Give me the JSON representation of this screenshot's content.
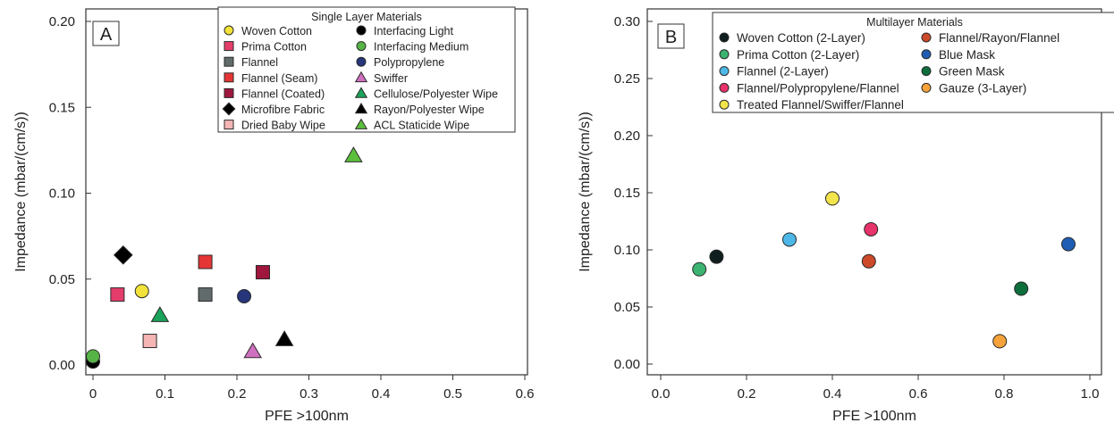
{
  "chart_data": [
    {
      "type": "scatter",
      "panel_label": "A",
      "xlabel": "PFE >100nm",
      "ylabel": "Impedance (mbar/(cm/s))",
      "xlim": [
        0,
        0.6
      ],
      "ylim": [
        0,
        0.2
      ],
      "xticks": [
        "0",
        "0.1",
        "0.2",
        "0.3",
        "0.4",
        "0.5",
        "0.6"
      ],
      "xtick_values": [
        0,
        0.1,
        0.2,
        0.3,
        0.4,
        0.5,
        0.6
      ],
      "yticks": [
        "0.00",
        "0.05",
        "0.10",
        "0.15",
        "0.20"
      ],
      "ytick_values": [
        0,
        0.05,
        0.1,
        0.15,
        0.2
      ],
      "legend_title": "Single Layer Materials",
      "legend_placement": "top-right",
      "series": [
        {
          "name": "Woven Cotton",
          "marker": "circle",
          "color": "#f2e23a",
          "x": 0.068,
          "y": 0.043
        },
        {
          "name": "Prima Cotton",
          "marker": "square",
          "color": "#e43d6b",
          "x": 0.034,
          "y": 0.041
        },
        {
          "name": "Flannel",
          "marker": "square",
          "color": "#616b6b",
          "x": 0.156,
          "y": 0.041
        },
        {
          "name": "Flannel (Seam)",
          "marker": "square",
          "color": "#e63535",
          "x": 0.156,
          "y": 0.06
        },
        {
          "name": "Flannel (Coated)",
          "marker": "square",
          "color": "#a0173e",
          "x": 0.236,
          "y": 0.054
        },
        {
          "name": "Microfibre Fabric",
          "marker": "diamond",
          "color": "#000000",
          "x": 0.042,
          "y": 0.064
        },
        {
          "name": "Dried Baby Wipe",
          "marker": "square",
          "color": "#f5b5b5",
          "x": 0.079,
          "y": 0.014
        },
        {
          "name": "Interfacing Light",
          "marker": "circle",
          "color": "#000000",
          "x": 0.0,
          "y": 0.002
        },
        {
          "name": "Interfacing Medium",
          "marker": "circle",
          "color": "#56b446",
          "x": 0.0,
          "y": 0.005
        },
        {
          "name": "Polypropylene",
          "marker": "circle",
          "color": "#27357a",
          "x": 0.21,
          "y": 0.04
        },
        {
          "name": "Swiffer",
          "marker": "triangle",
          "color": "#d070c0",
          "x": 0.222,
          "y": 0.008
        },
        {
          "name": "Cellulose/Polyester Wipe",
          "marker": "triangle",
          "color": "#1aa35a",
          "x": 0.093,
          "y": 0.029
        },
        {
          "name": "Rayon/Polyester Wipe",
          "marker": "triangle",
          "color": "#000000",
          "x": 0.266,
          "y": 0.015
        },
        {
          "name": "ACL Staticide Wipe",
          "marker": "triangle",
          "color": "#5cbf3c",
          "x": 0.362,
          "y": 0.122
        }
      ]
    },
    {
      "type": "scatter",
      "panel_label": "B",
      "xlabel": "PFE >100nm",
      "ylabel": "Impedance (mbar/(cm/s))",
      "xlim": [
        0,
        1.0
      ],
      "ylim": [
        0,
        0.3
      ],
      "xticks": [
        "0.0",
        "0.2",
        "0.4",
        "0.6",
        "0.8",
        "1.0"
      ],
      "xtick_values": [
        0,
        0.2,
        0.4,
        0.6,
        0.8,
        1.0
      ],
      "yticks": [
        "0.00",
        "0.05",
        "0.10",
        "0.15",
        "0.20",
        "0.25",
        "0.30"
      ],
      "ytick_values": [
        0,
        0.05,
        0.1,
        0.15,
        0.2,
        0.25,
        0.3
      ],
      "legend_title": "Multilayer Materials",
      "legend_placement": "top-right",
      "series": [
        {
          "name": "Woven Cotton (2-Layer)",
          "marker": "circle",
          "color": "#0f1e1e",
          "x": 0.13,
          "y": 0.094
        },
        {
          "name": "Prima Cotton (2-Layer)",
          "marker": "circle",
          "color": "#3cb371",
          "x": 0.09,
          "y": 0.083
        },
        {
          "name": "Flannel (2-Layer)",
          "marker": "circle",
          "color": "#4db8e8",
          "x": 0.3,
          "y": 0.109
        },
        {
          "name": "Flannel/Polypropylene/Flannel",
          "marker": "circle",
          "color": "#e8326a",
          "x": 0.49,
          "y": 0.118
        },
        {
          "name": "Treated Flannel/Swiffer/Flannel",
          "marker": "circle",
          "color": "#f2e44a",
          "x": 0.4,
          "y": 0.145
        },
        {
          "name": "Flannel/Rayon/Flannel",
          "marker": "circle",
          "color": "#cc4a2a",
          "x": 0.485,
          "y": 0.09
        },
        {
          "name": "Blue Mask",
          "marker": "circle",
          "color": "#1f5db5",
          "x": 0.95,
          "y": 0.105
        },
        {
          "name": "Green Mask",
          "marker": "circle",
          "color": "#0d6e3c",
          "x": 0.84,
          "y": 0.066
        },
        {
          "name": "Gauze (3-Layer)",
          "marker": "circle",
          "color": "#f5a33a",
          "x": 0.79,
          "y": 0.02
        }
      ]
    }
  ]
}
